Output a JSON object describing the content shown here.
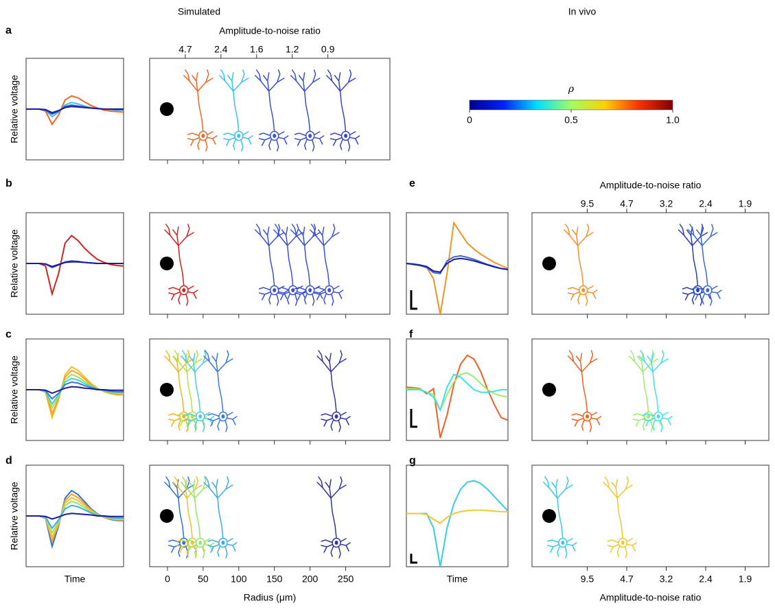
{
  "column_titles": [
    "Simulated",
    "In vivo"
  ],
  "chart_data": [
    {
      "type": "line",
      "panel_label": "a",
      "ylabel": "Relative voltage",
      "xlim": [
        0,
        15
      ],
      "ylim": [
        -1,
        1
      ],
      "x": [
        0,
        1,
        2,
        3,
        4,
        5,
        6,
        7,
        8,
        9,
        10,
        11,
        12,
        13,
        14,
        15
      ],
      "series": [
        {
          "color": "#f26522",
          "values": [
            0,
            0,
            0,
            -0.04,
            -0.3,
            -0.12,
            0.18,
            0.26,
            0.22,
            0.14,
            0.07,
            0.02,
            -0.02,
            -0.04,
            -0.05,
            -0.06
          ]
        },
        {
          "color": "#33c4f0",
          "values": [
            0,
            0,
            0,
            -0.02,
            -0.15,
            -0.06,
            0.08,
            0.13,
            0.1,
            0.06,
            0.03,
            0.01,
            0,
            -0.01,
            -0.02,
            -0.02
          ]
        },
        {
          "color": "#3a50d8",
          "values": [
            0,
            0,
            0,
            -0.02,
            -0.1,
            -0.04,
            0.05,
            0.08,
            0.06,
            0.04,
            0.02,
            0.01,
            0,
            0,
            -0.01,
            -0.01
          ]
        },
        {
          "color": "#1c1c98",
          "values": [
            0,
            0,
            0,
            -0.01,
            -0.07,
            -0.03,
            0.03,
            0.05,
            0.04,
            0.03,
            0.02,
            0.01,
            0,
            0,
            0,
            0
          ]
        }
      ]
    },
    {
      "type": "neurons",
      "x2label": "Amplitude-to-noise ratio",
      "xlim": [
        -25,
        312
      ],
      "xticks": [
        0,
        50,
        100,
        150,
        200,
        250
      ],
      "x2ticks": [
        {
          "value": 25,
          "label": "4.7"
        },
        {
          "value": 75,
          "label": "2.4"
        },
        {
          "value": 125,
          "label": "1.6"
        },
        {
          "value": 175,
          "label": "1.2"
        },
        {
          "value": 225,
          "label": "0.9"
        }
      ],
      "positions": [
        50,
        100,
        150,
        200,
        250
      ],
      "colors": [
        "#f26522",
        "#33c4f0",
        "#3a50d8",
        "#3a4fd0",
        "#3544c8"
      ]
    },
    {
      "type": "colorbar",
      "label": "ρ",
      "lim": [
        0,
        1
      ],
      "colors": [
        "#000090",
        "#0020ff",
        "#00e0ff",
        "#a0ff60",
        "#ffd000",
        "#ff3000",
        "#800000"
      ],
      "ticks": [
        0,
        0.5,
        {
          "value": 1,
          "label": "1.0"
        }
      ]
    },
    {
      "type": "line",
      "panel_label": "b",
      "ylabel": "Relative voltage",
      "xlim": [
        0,
        15
      ],
      "ylim": [
        -1,
        1
      ],
      "x": [
        0,
        1,
        2,
        3,
        4,
        5,
        6,
        7,
        8,
        9,
        10,
        11,
        12,
        13,
        14,
        15
      ],
      "series": [
        {
          "color": "#d42020",
          "values": [
            0,
            0,
            0,
            -0.05,
            -0.6,
            -0.2,
            0.4,
            0.55,
            0.45,
            0.3,
            0.18,
            0.08,
            0.02,
            -0.02,
            -0.04,
            -0.05
          ]
        },
        {
          "color": "#3a50d8",
          "values": [
            0,
            0,
            0,
            -0.01,
            -0.08,
            -0.03,
            0.03,
            0.05,
            0.04,
            0.02,
            0.01,
            0,
            0,
            0,
            0,
            0
          ]
        },
        {
          "color": "#3040c0",
          "values": [
            0,
            0,
            0,
            -0.01,
            -0.07,
            -0.03,
            0.02,
            0.04,
            0.03,
            0.02,
            0.01,
            0,
            0,
            0,
            0,
            0
          ]
        },
        {
          "color": "#1c1c98",
          "values": [
            0,
            0,
            0,
            -0.01,
            -0.06,
            -0.02,
            0.02,
            0.03,
            0.03,
            0.02,
            0.01,
            0,
            0,
            0,
            0,
            0
          ]
        }
      ]
    },
    {
      "type": "neurons",
      "xlim": [
        -25,
        312
      ],
      "xticks": [
        0,
        50,
        100,
        150,
        200,
        250
      ],
      "positions": [
        23,
        150,
        176,
        200,
        227
      ],
      "colors": [
        "#d42020",
        "#3a50d8",
        "#3a50d8",
        "#3a50d8",
        "#3a50d8"
      ]
    },
    {
      "type": "line",
      "panel_label": "e",
      "xlim": [
        0,
        15
      ],
      "ylim": [
        -1,
        1
      ],
      "x": [
        0,
        1,
        2,
        3,
        4,
        5,
        6,
        7,
        8,
        9,
        10,
        11,
        12,
        13,
        14,
        15
      ],
      "series": [
        {
          "color": "#f5902a",
          "values": [
            0,
            -0.02,
            -0.04,
            -0.08,
            -0.3,
            -1,
            -0.2,
            0.8,
            0.6,
            0.4,
            0.28,
            0.18,
            0.1,
            0.02,
            -0.04,
            -0.1
          ]
        },
        {
          "color": "#3868d8",
          "values": [
            0,
            -0.02,
            -0.04,
            -0.08,
            -0.18,
            -0.2,
            0.05,
            0.13,
            0.15,
            0.12,
            0.08,
            0.03,
            -0.02,
            -0.06,
            -0.1,
            -0.12
          ]
        },
        {
          "color": "#1c1c98",
          "values": [
            0,
            -0.01,
            -0.03,
            -0.06,
            -0.15,
            -0.17,
            0,
            0.08,
            0.1,
            0.08,
            0.05,
            0.01,
            -0.03,
            -0.07,
            -0.1,
            -0.12
          ]
        }
      ]
    },
    {
      "type": "neurons",
      "x2label": "Amplitude-to-noise ratio",
      "xlim": [
        0,
        6
      ],
      "xticks": [
        1.4,
        2.4,
        3.4,
        4.4,
        5.4
      ],
      "x2ticks": [
        {
          "value": 1.4,
          "label": "9.5"
        },
        {
          "value": 2.4,
          "label": "4.7"
        },
        {
          "value": 3.4,
          "label": "3.2"
        },
        {
          "value": 4.4,
          "label": "2.4"
        },
        {
          "value": 5.4,
          "label": "1.9"
        }
      ],
      "positions": [
        1.3,
        4.2,
        4.45
      ],
      "colors": [
        "#f5902a",
        "#2c3cb0",
        "#3868d8"
      ]
    },
    {
      "type": "line",
      "panel_label": "c",
      "ylabel": "Relative voltage",
      "xlim": [
        0,
        15
      ],
      "ylim": [
        -1,
        1
      ],
      "x": [
        0,
        1,
        2,
        3,
        4,
        5,
        6,
        7,
        8,
        9,
        10,
        11,
        12,
        13,
        14,
        15
      ],
      "series": [
        {
          "color": "#f0c020",
          "values": [
            0,
            0,
            0,
            -0.05,
            -0.55,
            -0.2,
            0.3,
            0.45,
            0.38,
            0.25,
            0.12,
            0.03,
            -0.04,
            -0.08,
            -0.1,
            -0.1
          ]
        },
        {
          "color": "#f5a020",
          "values": [
            0,
            0,
            0,
            -0.04,
            -0.47,
            -0.17,
            0.25,
            0.38,
            0.32,
            0.21,
            0.1,
            0.02,
            -0.03,
            -0.07,
            -0.09,
            -0.09
          ]
        },
        {
          "color": "#a8e050",
          "values": [
            0,
            0,
            0,
            -0.03,
            -0.36,
            -0.13,
            0.2,
            0.3,
            0.25,
            0.16,
            0.08,
            0.02,
            -0.03,
            -0.05,
            -0.07,
            -0.07
          ]
        },
        {
          "color": "#40d0e0",
          "values": [
            0,
            0,
            0,
            -0.03,
            -0.28,
            -0.1,
            0.15,
            0.22,
            0.19,
            0.12,
            0.06,
            0.01,
            -0.02,
            -0.04,
            -0.05,
            -0.05
          ]
        },
        {
          "color": "#3a78e0",
          "values": [
            0,
            0,
            0,
            -0.02,
            -0.18,
            -0.07,
            0.1,
            0.15,
            0.13,
            0.08,
            0.04,
            0.01,
            -0.01,
            -0.03,
            -0.04,
            -0.04
          ]
        },
        {
          "color": "#1c1c98",
          "values": [
            0,
            0,
            0,
            -0.01,
            -0.07,
            -0.02,
            0.03,
            0.06,
            0.05,
            0.03,
            0.02,
            0,
            0,
            -0.01,
            -0.01,
            -0.01
          ]
        }
      ]
    },
    {
      "type": "neurons",
      "xlim": [
        -25,
        312
      ],
      "xticks": [
        0,
        50,
        100,
        150,
        200,
        250
      ],
      "positions": [
        23,
        35,
        46,
        78,
        237
      ],
      "colors": [
        "#f2b51c",
        "#b8e040",
        "#40d0e0",
        "#3a78e0",
        "#3434a8"
      ]
    },
    {
      "type": "line",
      "panel_label": "f",
      "xlim": [
        0,
        15
      ],
      "ylim": [
        -1,
        1
      ],
      "x": [
        0,
        1,
        2,
        3,
        4,
        5,
        6,
        7,
        8,
        9,
        10,
        11,
        12,
        13,
        14,
        15
      ],
      "series": [
        {
          "color": "#f06020",
          "values": [
            0.05,
            0.04,
            0.02,
            -0.08,
            0.02,
            -0.95,
            -0.5,
            0.1,
            0.5,
            0.68,
            0.6,
            0.35,
            0,
            -0.3,
            -0.55,
            -0.6
          ]
        },
        {
          "color": "#a0e870",
          "values": [
            0.02,
            0.02,
            0.01,
            -0.05,
            -0.1,
            -0.4,
            -0.1,
            0.15,
            0.3,
            0.33,
            0.25,
            0.12,
            0,
            -0.08,
            -0.12,
            -0.14
          ]
        },
        {
          "color": "#40e0e8",
          "values": [
            0,
            0,
            0,
            -0.05,
            -0.15,
            -0.4,
            0.05,
            0.3,
            0.25,
            0.12,
            0,
            -0.05,
            -0.05,
            -0.03,
            0,
            0
          ]
        }
      ]
    },
    {
      "type": "neurons",
      "xlim": [
        0,
        6
      ],
      "xticks": [
        1.4,
        2.4,
        3.4,
        4.4,
        5.4
      ],
      "positions": [
        1.4,
        2.95,
        3.2
      ],
      "colors": [
        "#f06020",
        "#a0e870",
        "#40e0e8"
      ]
    },
    {
      "type": "line",
      "panel_label": "d",
      "ylabel": "Relative voltage",
      "xlabel": "Time",
      "xlim": [
        0,
        15
      ],
      "ylim": [
        -1,
        1
      ],
      "x": [
        0,
        1,
        2,
        3,
        4,
        5,
        6,
        7,
        8,
        9,
        10,
        11,
        12,
        13,
        14,
        15
      ],
      "series": [
        {
          "color": "#2e6fe0",
          "values": [
            0,
            0,
            0,
            -0.05,
            -0.6,
            -0.2,
            0.35,
            0.5,
            0.42,
            0.28,
            0.14,
            0.04,
            -0.03,
            -0.07,
            -0.09,
            -0.09
          ]
        },
        {
          "color": "#f5a020",
          "values": [
            0,
            0,
            0,
            -0.04,
            -0.5,
            -0.17,
            0.3,
            0.43,
            0.36,
            0.24,
            0.12,
            0.03,
            -0.03,
            -0.06,
            -0.08,
            -0.08
          ]
        },
        {
          "color": "#f0c030",
          "values": [
            0,
            0,
            0,
            -0.04,
            -0.42,
            -0.14,
            0.25,
            0.36,
            0.3,
            0.2,
            0.1,
            0.02,
            -0.02,
            -0.05,
            -0.07,
            -0.07
          ]
        },
        {
          "color": "#90e870",
          "values": [
            0,
            0,
            0,
            -0.03,
            -0.33,
            -0.11,
            0.2,
            0.29,
            0.24,
            0.16,
            0.08,
            0.02,
            -0.02,
            -0.04,
            -0.06,
            -0.06
          ]
        },
        {
          "color": "#40a8f0",
          "values": [
            0,
            0,
            0,
            -0.02,
            -0.24,
            -0.08,
            0.14,
            0.21,
            0.18,
            0.12,
            0.06,
            0.01,
            -0.01,
            -0.03,
            -0.04,
            -0.04
          ]
        },
        {
          "color": "#1c1c98",
          "values": [
            0,
            0,
            0,
            -0.01,
            -0.06,
            -0.02,
            0.03,
            0.05,
            0.04,
            0.03,
            0.02,
            0,
            0,
            -0.01,
            -0.01,
            -0.01
          ]
        }
      ]
    },
    {
      "type": "neurons",
      "xlabel": "Radius (μm)",
      "xlim": [
        -25,
        312
      ],
      "xticks": [
        0,
        50,
        100,
        150,
        200,
        250
      ],
      "positions": [
        23,
        35,
        46,
        78,
        237
      ],
      "colors": [
        "#2e6fe0",
        "#f0c030",
        "#90e870",
        "#40a8f0",
        "#34349c"
      ]
    },
    {
      "type": "line",
      "panel_label": "g",
      "xlabel": "Time",
      "xlim": [
        0,
        15
      ],
      "ylim": [
        -1.1,
        1
      ],
      "x": [
        0,
        1,
        2,
        3,
        4,
        5,
        6,
        7,
        8,
        9,
        10,
        11,
        12,
        13,
        14,
        15
      ],
      "series": [
        {
          "color": "#38cbe8",
          "values": [
            0,
            0,
            0,
            0,
            -0.3,
            -1.1,
            -0.3,
            0.2,
            0.5,
            0.65,
            0.68,
            0.62,
            0.5,
            0.35,
            0.2,
            0.05
          ]
        },
        {
          "color": "#f0c830",
          "values": [
            0,
            0,
            0,
            -0.02,
            -0.12,
            -0.2,
            -0.08,
            0,
            0.04,
            0.06,
            0.07,
            0.07,
            0.06,
            0.05,
            0.04,
            0.04
          ]
        }
      ]
    },
    {
      "type": "neurons",
      "xlabel": "Amplitude-to-noise ratio",
      "xlim": [
        0,
        6
      ],
      "xticks": [
        {
          "value": 1.4,
          "label": "9.5"
        },
        {
          "value": 2.4,
          "label": "4.7"
        },
        {
          "value": 3.4,
          "label": "3.2"
        },
        {
          "value": 4.4,
          "label": "2.4"
        },
        {
          "value": 5.4,
          "label": "1.9"
        }
      ],
      "positions": [
        0.78,
        2.3
      ],
      "colors": [
        "#38cbe8",
        "#f0c830"
      ]
    }
  ]
}
